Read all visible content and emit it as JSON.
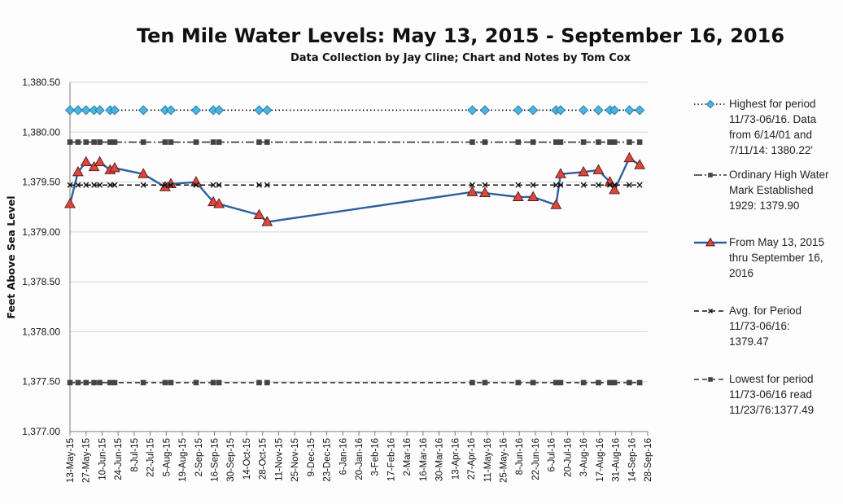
{
  "chart_data": {
    "type": "line",
    "title": "Ten Mile Water Levels: May 13, 2015 - September 16, 2016",
    "subtitle": "Data Collection by Jay Cline; Chart and Notes by Tom Cox",
    "ylabel": "Feet Above Sea Level",
    "xlabel": "",
    "ylim": [
      1377.0,
      1380.5
    ],
    "yticks": [
      "1,377.00",
      "1,377.50",
      "1,378.00",
      "1,378.50",
      "1,379.00",
      "1,379.50",
      "1,380.00",
      "1,380.50"
    ],
    "x_axis_type": "date",
    "x_range": [
      "2015-05-13",
      "2016-09-28"
    ],
    "x_tick_dates": [
      "2015-05-13",
      "2015-05-27",
      "2015-06-10",
      "2015-06-24",
      "2015-07-08",
      "2015-07-22",
      "2015-08-05",
      "2015-08-19",
      "2015-09-02",
      "2015-09-16",
      "2015-09-30",
      "2015-10-14",
      "2015-10-28",
      "2015-11-11",
      "2015-11-25",
      "2015-12-09",
      "2015-12-23",
      "2016-01-06",
      "2016-01-20",
      "2016-02-03",
      "2016-02-17",
      "2016-03-02",
      "2016-03-16",
      "2016-03-30",
      "2016-04-13",
      "2016-04-27",
      "2016-05-11",
      "2016-05-25",
      "2016-06-08",
      "2016-06-22",
      "2016-07-06",
      "2016-07-20",
      "2016-08-03",
      "2016-08-17",
      "2016-08-31",
      "2016-09-14",
      "2016-09-28"
    ],
    "x_tick_labels": [
      "13-May-15",
      "27-May-15",
      "10-Jun-15",
      "24-Jun-15",
      "8-Jul-15",
      "22-Jul-15",
      "5-Aug-15",
      "19-Aug-15",
      "2-Sep-15",
      "16-Sep-15",
      "30-Sep-15",
      "14-Oct-15",
      "28-Oct-15",
      "11-Nov-15",
      "25-Nov-15",
      "9-Dec-15",
      "23-Dec-15",
      "6-Jan-16",
      "20-Jan-16",
      "3-Feb-16",
      "17-Feb-16",
      "2-Mar-16",
      "16-Mar-16",
      "30-Mar-16",
      "13-Apr-16",
      "27-Apr-16",
      "11-May-16",
      "25-May-16",
      "8-Jun-16",
      "22-Jun-16",
      "6-Jul-16",
      "20-Jul-16",
      "3-Aug-16",
      "17-Aug-16",
      "31-Aug-16",
      "14-Sep-16",
      "28-Sep-16"
    ],
    "grid": "horizontal",
    "legend_position": "right",
    "x": [
      "2015-05-13",
      "2015-05-20",
      "2015-05-27",
      "2015-06-03",
      "2015-06-08",
      "2015-06-17",
      "2015-06-21",
      "2015-07-16",
      "2015-08-04",
      "2015-08-09",
      "2015-08-31",
      "2015-09-15",
      "2015-09-20",
      "2015-10-25",
      "2015-11-01",
      "2016-04-28",
      "2016-05-09",
      "2016-06-07",
      "2016-06-20",
      "2016-07-10",
      "2016-07-14",
      "2016-08-03",
      "2016-08-16",
      "2016-08-26",
      "2016-08-30",
      "2016-09-12",
      "2016-09-21"
    ],
    "series": [
      {
        "name": "Highest  for period 11/73-06/16. Data from 6/14/01 and 7/11/14: 1380.22'",
        "style": "dotted",
        "marker": "diamond",
        "color": "#111111",
        "marker_color": "#4fb3e0",
        "values": [
          1380.22,
          1380.22,
          1380.22,
          1380.22,
          1380.22,
          1380.22,
          1380.22,
          1380.22,
          1380.22,
          1380.22,
          1380.22,
          1380.22,
          1380.22,
          1380.22,
          1380.22,
          1380.22,
          1380.22,
          1380.22,
          1380.22,
          1380.22,
          1380.22,
          1380.22,
          1380.22,
          1380.22,
          1380.22,
          1380.22,
          1380.22
        ]
      },
      {
        "name": "Ordinary High Water Mark Established 1929: 1379.90",
        "style": "dashdot",
        "marker": "square",
        "color": "#333333",
        "marker_color": "#444444",
        "values": [
          1379.9,
          1379.9,
          1379.9,
          1379.9,
          1379.9,
          1379.9,
          1379.9,
          1379.9,
          1379.9,
          1379.9,
          1379.9,
          1379.9,
          1379.9,
          1379.9,
          1379.9,
          1379.9,
          1379.9,
          1379.9,
          1379.9,
          1379.9,
          1379.9,
          1379.9,
          1379.9,
          1379.9,
          1379.9,
          1379.9,
          1379.9
        ]
      },
      {
        "name": "From May 13, 2015 thru September 16, 2016",
        "style": "solid",
        "marker": "triangle",
        "color": "#2e5f9e",
        "marker_color": "#d9473f",
        "values": [
          1379.28,
          1379.6,
          1379.7,
          1379.65,
          1379.7,
          1379.62,
          1379.64,
          1379.58,
          1379.45,
          1379.48,
          1379.5,
          1379.3,
          1379.28,
          1379.17,
          1379.1,
          1379.4,
          1379.39,
          1379.35,
          1379.35,
          1379.27,
          1379.58,
          1379.6,
          1379.62,
          1379.5,
          1379.42,
          1379.74,
          1379.67
        ]
      },
      {
        "name": "Avg. for Period 11/73-06/16: 1379.47",
        "style": "dashed",
        "marker": "x",
        "color": "#111111",
        "marker_color": "#111111",
        "values": [
          1379.47,
          1379.47,
          1379.47,
          1379.47,
          1379.47,
          1379.47,
          1379.47,
          1379.47,
          1379.47,
          1379.47,
          1379.47,
          1379.47,
          1379.47,
          1379.47,
          1379.47,
          1379.47,
          1379.47,
          1379.47,
          1379.47,
          1379.47,
          1379.47,
          1379.47,
          1379.47,
          1379.47,
          1379.47,
          1379.47,
          1379.47
        ]
      },
      {
        "name": "Lowest for period 11/73-06/16 read 11/23/76:1377.49",
        "style": "dashed",
        "marker": "square",
        "color": "#333333",
        "marker_color": "#444444",
        "values": [
          1377.49,
          1377.49,
          1377.49,
          1377.49,
          1377.49,
          1377.49,
          1377.49,
          1377.49,
          1377.49,
          1377.49,
          1377.49,
          1377.49,
          1377.49,
          1377.49,
          1377.49,
          1377.49,
          1377.49,
          1377.49,
          1377.49,
          1377.49,
          1377.49,
          1377.49,
          1377.49,
          1377.49,
          1377.49,
          1377.49,
          1377.49
        ]
      }
    ],
    "legend": [
      {
        "lines": [
          "Highest  for period",
          "11/73-06/16. Data",
          "from 6/14/01 and",
          "7/11/14: 1380.22'"
        ]
      },
      {
        "lines": [
          "Ordinary High Water",
          "Mark Established",
          "1929: 1379.90"
        ]
      },
      {
        "lines": [
          "From May 13, 2015",
          "thru September 16,",
          "2016"
        ]
      },
      {
        "lines": [
          "Avg. for Period",
          "11/73-06/16:",
          "1379.47"
        ]
      },
      {
        "lines": [
          "Lowest for period",
          "11/73-06/16 read",
          "11/23/76:1377.49"
        ]
      }
    ]
  }
}
